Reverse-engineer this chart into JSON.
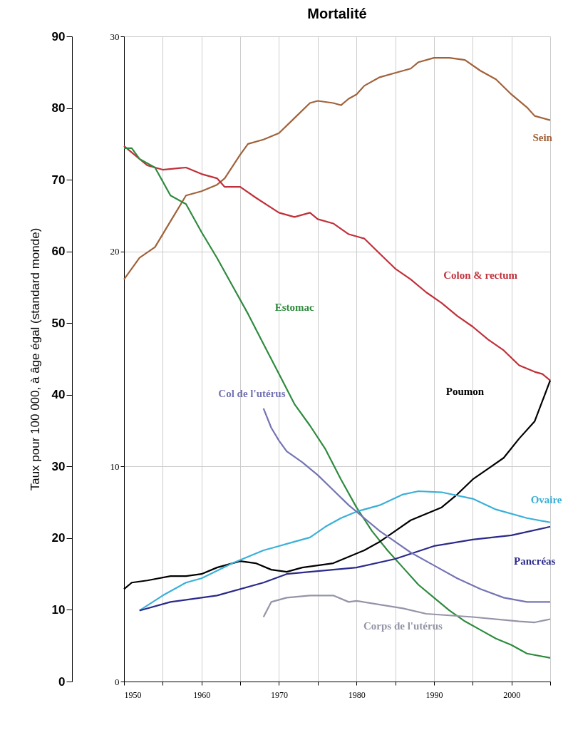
{
  "chart_data": {
    "type": "line",
    "title": "Mortalité",
    "y2label": "Taux pour 100 000, à âge égal (standard monde)",
    "xlim": [
      1950,
      2005
    ],
    "xticks": [
      1950,
      {
        "value": 1955,
        "label": null
      },
      1960,
      {
        "value": 1965,
        "label": null
      },
      1970,
      {
        "value": 1975,
        "label": null
      },
      1980,
      {
        "value": 1985,
        "label": null
      },
      1990,
      {
        "value": 1995,
        "label": null
      },
      2000,
      {
        "value": 2005,
        "label": null
      }
    ],
    "ylim": [
      0,
      30
    ],
    "yticks": [
      0,
      10,
      20,
      30
    ],
    "y2lim": [
      0,
      90
    ],
    "y2ticks": [
      0,
      10,
      20,
      30,
      40,
      50,
      60,
      70,
      80,
      90
    ],
    "grid": true,
    "legend": false,
    "series": [
      {
        "name": "Sein",
        "color": "#a0623a",
        "x": [
          1950,
          1952,
          1954,
          1956,
          1958,
          1960,
          1962,
          1963,
          1965,
          1966,
          1968,
          1970,
          1972,
          1974,
          1975,
          1977,
          1978,
          1979,
          1980,
          1981,
          1983,
          1985,
          1987,
          1988,
          1990,
          1992,
          1994,
          1996,
          1998,
          2000,
          2002,
          2003,
          2005
        ],
        "values": [
          18.7,
          19.7,
          20.2,
          21.4,
          22.6,
          22.8,
          23.1,
          23.4,
          24.5,
          25.0,
          25.2,
          25.5,
          26.2,
          26.9,
          27.0,
          26.9,
          26.8,
          27.1,
          27.3,
          27.7,
          28.1,
          28.3,
          28.5,
          28.8,
          29.0,
          29.0,
          28.9,
          28.4,
          28.0,
          27.3,
          26.7,
          26.3,
          26.1
        ]
      },
      {
        "name": "Colon & rectum",
        "color": "#c0303a",
        "x": [
          1950,
          1951,
          1953,
          1955,
          1958,
          1960,
          1962,
          1963,
          1965,
          1967,
          1970,
          1972,
          1974,
          1975,
          1977,
          1979,
          1981,
          1983,
          1985,
          1987,
          1989,
          1991,
          1993,
          1995,
          1997,
          1999,
          2001,
          2003,
          2004,
          2005
        ],
        "values": [
          24.9,
          24.6,
          24.0,
          23.8,
          23.9,
          23.6,
          23.4,
          23.0,
          23.0,
          22.5,
          21.8,
          21.6,
          21.8,
          21.5,
          21.3,
          20.8,
          20.6,
          19.9,
          19.2,
          18.7,
          18.1,
          17.6,
          17.0,
          16.5,
          15.9,
          15.4,
          14.7,
          14.4,
          14.3,
          14.0
        ]
      },
      {
        "name": "Estomac",
        "color": "#2e8b3e",
        "x": [
          1950,
          1951,
          1952,
          1954,
          1956,
          1958,
          1960,
          1962,
          1964,
          1966,
          1968,
          1970,
          1972,
          1974,
          1976,
          1978,
          1980,
          1982,
          1984,
          1986,
          1988,
          1990,
          1992,
          1994,
          1996,
          1998,
          2000,
          2002,
          2005
        ],
        "values": [
          24.8,
          24.8,
          24.3,
          23.9,
          22.6,
          22.2,
          20.9,
          19.7,
          18.4,
          17.1,
          15.7,
          14.3,
          12.9,
          11.9,
          10.8,
          9.4,
          8.1,
          7.0,
          6.1,
          5.3,
          4.5,
          3.9,
          3.3,
          2.8,
          2.4,
          2.0,
          1.7,
          1.3,
          1.1
        ]
      },
      {
        "name": "Poumon",
        "color": "#000000",
        "x": [
          1950,
          1951,
          1953,
          1956,
          1958,
          1960,
          1962,
          1965,
          1967,
          1969,
          1971,
          1973,
          1975,
          1977,
          1979,
          1981,
          1983,
          1985,
          1987,
          1989,
          1991,
          1993,
          1995,
          1997,
          1999,
          2001,
          2003,
          2005
        ],
        "values": [
          4.3,
          4.6,
          4.7,
          4.9,
          4.9,
          5.0,
          5.3,
          5.6,
          5.5,
          5.2,
          5.1,
          5.3,
          5.4,
          5.5,
          5.8,
          6.1,
          6.5,
          7.0,
          7.5,
          7.8,
          8.1,
          8.7,
          9.4,
          9.9,
          10.4,
          11.3,
          12.1,
          14.0
        ]
      },
      {
        "name": "Ovaire",
        "color": "#3ab0d8",
        "x": [
          1952,
          1955,
          1958,
          1960,
          1964,
          1968,
          1970,
          1972,
          1974,
          1976,
          1978,
          1980,
          1983,
          1986,
          1988,
          1991,
          1995,
          1998,
          2002,
          2005
        ],
        "values": [
          3.3,
          4.0,
          4.6,
          4.8,
          5.5,
          6.1,
          6.3,
          6.5,
          6.7,
          7.2,
          7.6,
          7.9,
          8.2,
          8.7,
          8.85,
          8.8,
          8.5,
          8.0,
          7.6,
          7.4
        ]
      },
      {
        "name": "Pancréas",
        "color": "#2a2a8a",
        "x": [
          1952,
          1956,
          1962,
          1968,
          1971,
          1974,
          1977,
          1980,
          1985,
          1990,
          1995,
          2000,
          2005
        ],
        "values": [
          3.3,
          3.7,
          4.0,
          4.6,
          5.0,
          5.1,
          5.2,
          5.3,
          5.7,
          6.3,
          6.6,
          6.8,
          7.2
        ]
      },
      {
        "name": "Col de l'utérus",
        "color": "#7474b4",
        "x": [
          1968,
          1969,
          1970,
          1971,
          1973,
          1975,
          1977,
          1979,
          1981,
          1983,
          1985,
          1987,
          1990,
          1993,
          1996,
          1999,
          2002,
          2005
        ],
        "values": [
          12.7,
          11.8,
          11.2,
          10.7,
          10.2,
          9.6,
          8.9,
          8.2,
          7.6,
          7.0,
          6.5,
          6.0,
          5.4,
          4.8,
          4.3,
          3.9,
          3.7,
          3.7
        ]
      },
      {
        "name": "Corps de l'utérus",
        "color": "#9494a8",
        "x": [
          1968,
          1969,
          1971,
          1974,
          1977,
          1979,
          1980,
          1986,
          1989,
          1995,
          2001,
          2003,
          2005
        ],
        "values": [
          3.0,
          3.7,
          3.9,
          4.0,
          4.0,
          3.7,
          3.75,
          3.4,
          3.15,
          3.0,
          2.8,
          2.75,
          2.9
        ]
      }
    ]
  }
}
